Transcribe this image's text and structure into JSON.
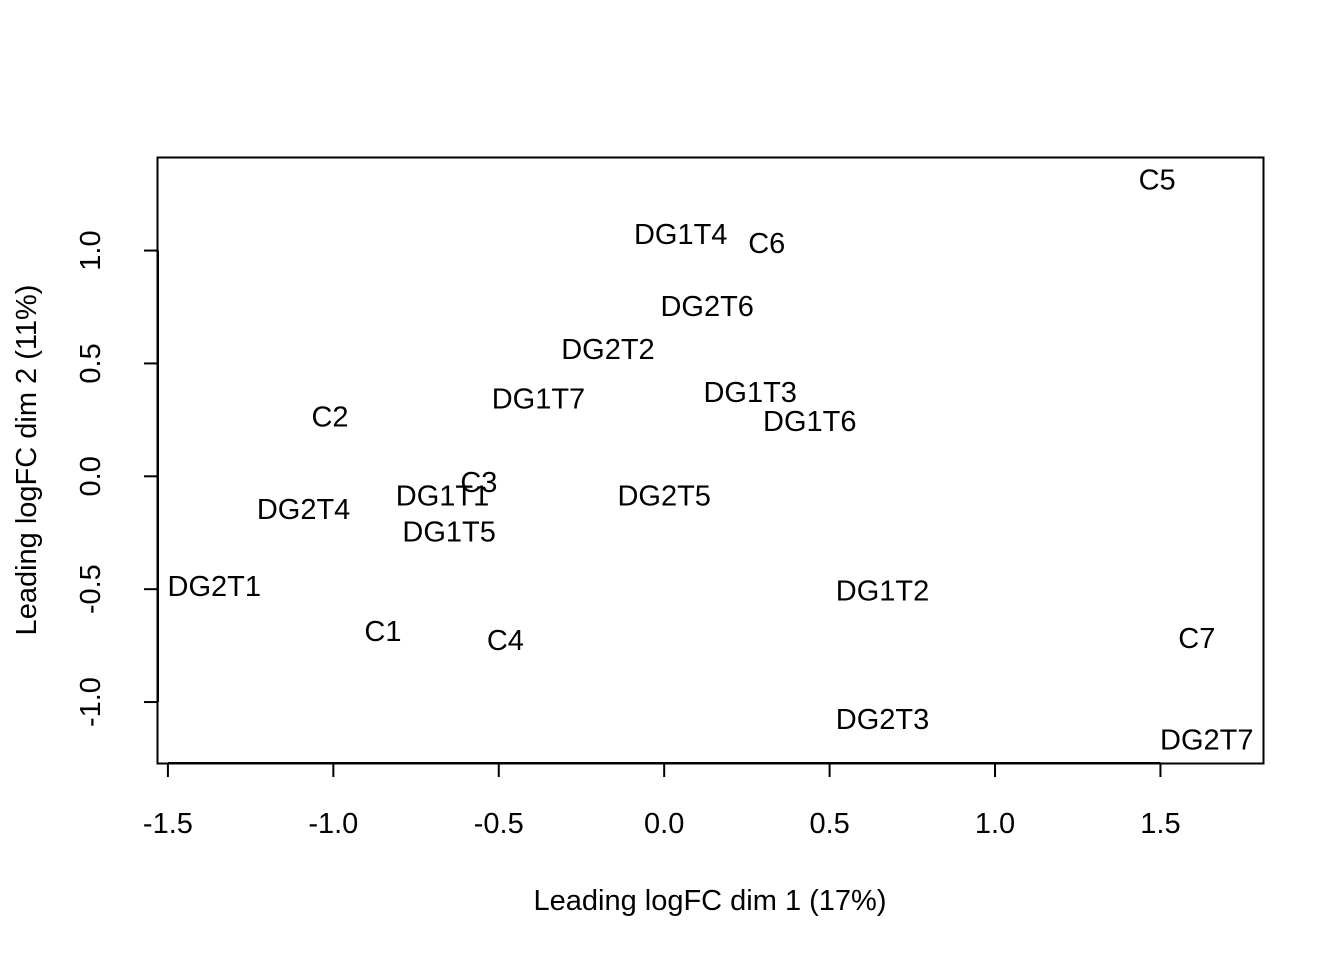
{
  "chart_data": {
    "type": "scatter",
    "title": "",
    "xlabel": "Leading logFC dim 1 (17%)",
    "ylabel": "Leading logFC dim 2 (11%)",
    "xlim": [
      -1.53,
      1.81
    ],
    "ylim": [
      -1.27,
      1.41
    ],
    "xticks": [
      -1.5,
      -1.0,
      -0.5,
      0.0,
      0.5,
      1.0,
      1.5
    ],
    "xtick_labels": [
      "-1.5",
      "-1.0",
      "-0.5",
      "0.0",
      "0.5",
      "1.0",
      "1.5"
    ],
    "yticks": [
      -1.0,
      -0.5,
      0.0,
      0.5,
      1.0
    ],
    "ytick_labels": [
      "-1.0",
      "-0.5",
      "0.0",
      "0.5",
      "1.0"
    ],
    "points_as": "text labels",
    "grid": false,
    "points": [
      {
        "label": "C5",
        "x": 1.49,
        "y": 1.31
      },
      {
        "label": "DG1T4",
        "x": 0.05,
        "y": 1.07
      },
      {
        "label": "C6",
        "x": 0.31,
        "y": 1.03
      },
      {
        "label": "DG2T6",
        "x": 0.13,
        "y": 0.75
      },
      {
        "label": "DG2T2",
        "x": -0.17,
        "y": 0.56
      },
      {
        "label": "DG1T7",
        "x": -0.38,
        "y": 0.34
      },
      {
        "label": "DG1T3",
        "x": 0.26,
        "y": 0.37
      },
      {
        "label": "DG1T6",
        "x": 0.44,
        "y": 0.24
      },
      {
        "label": "C2",
        "x": -1.01,
        "y": 0.26
      },
      {
        "label": "C3",
        "x": -0.56,
        "y": -0.03
      },
      {
        "label": "DG1T1",
        "x": -0.67,
        "y": -0.09
      },
      {
        "label": "DG2T5",
        "x": 0.0,
        "y": -0.09
      },
      {
        "label": "DG2T4",
        "x": -1.09,
        "y": -0.15
      },
      {
        "label": "DG1T5",
        "x": -0.65,
        "y": -0.25
      },
      {
        "label": "DG2T1",
        "x": -1.36,
        "y": -0.49
      },
      {
        "label": "DG1T2",
        "x": 0.66,
        "y": -0.51
      },
      {
        "label": "C1",
        "x": -0.85,
        "y": -0.69
      },
      {
        "label": "C4",
        "x": -0.48,
        "y": -0.73
      },
      {
        "label": "C7",
        "x": 1.61,
        "y": -0.72
      },
      {
        "label": "DG2T3",
        "x": 0.66,
        "y": -1.08
      },
      {
        "label": "DG2T7",
        "x": 1.64,
        "y": -1.17
      }
    ]
  }
}
